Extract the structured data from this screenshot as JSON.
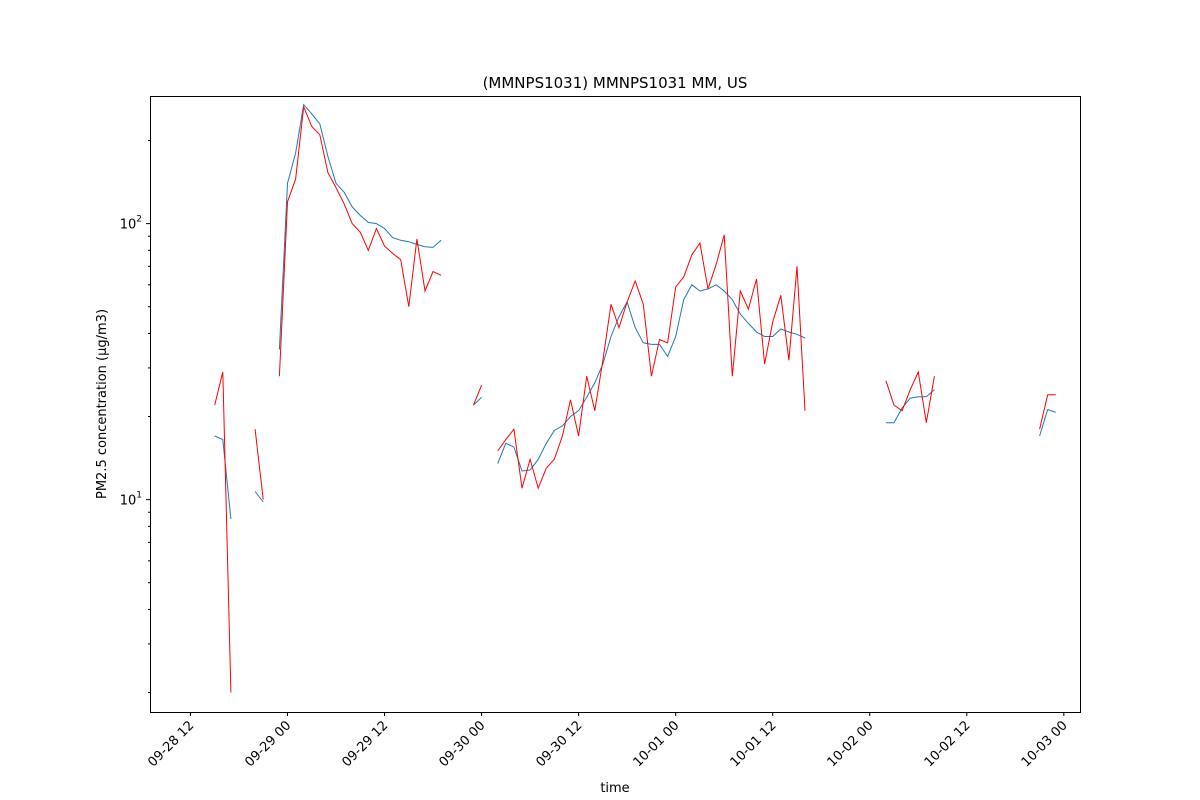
{
  "chart_data": {
    "type": "line",
    "title": "(MMNPS1031) MMNPS1031 MM, US",
    "xlabel": "time",
    "ylabel": "PM2.5 concentration (µg/m3)",
    "yscale": "log",
    "ylim": [
      1.7,
      290
    ],
    "xlim": [
      "2022-09-28T07:00",
      "2022-10-03T02:00"
    ],
    "x_ticks": [
      "09-28 12",
      "09-29 00",
      "09-29 12",
      "09-30 00",
      "09-30 12",
      "10-01 00",
      "10-01 12",
      "10-02 00",
      "10-02 12",
      "10-03 00"
    ],
    "x_tick_values": [
      "2022-09-28T12:00",
      "2022-09-29T00:00",
      "2022-09-29T12:00",
      "2022-09-30T00:00",
      "2022-09-30T12:00",
      "2022-10-01T00:00",
      "2022-10-01T12:00",
      "2022-10-02T00:00",
      "2022-10-02T12:00",
      "2022-10-03T00:00"
    ],
    "y_ticks": [
      {
        "value": 10,
        "base": "10",
        "exp": "1"
      },
      {
        "value": 100,
        "base": "10",
        "exp": "2"
      }
    ],
    "grid": false,
    "legend": "none",
    "series": [
      {
        "color": "#1f77b4",
        "segments": [
          [
            [
              "2022-09-28T15:00",
              17
            ],
            [
              "2022-09-28T16:00",
              16.5
            ],
            [
              "2022-09-28T17:00",
              8.5
            ]
          ],
          [
            [
              "2022-09-28T20:00",
              10.7
            ],
            [
              "2022-09-28T21:00",
              9.8
            ]
          ],
          [
            [
              "2022-09-28T23:00",
              35
            ],
            [
              "2022-09-29T00:00",
              140
            ],
            [
              "2022-09-29T01:00",
              180
            ],
            [
              "2022-09-29T02:00",
              270
            ],
            [
              "2022-09-29T03:00",
              250
            ],
            [
              "2022-09-29T04:00",
              230
            ],
            [
              "2022-09-29T05:00",
              175
            ],
            [
              "2022-09-29T06:00",
              140
            ],
            [
              "2022-09-29T07:00",
              130
            ],
            [
              "2022-09-29T08:00",
              115
            ],
            [
              "2022-09-29T09:00",
              107
            ],
            [
              "2022-09-29T10:00",
              101
            ],
            [
              "2022-09-29T11:00",
              100
            ],
            [
              "2022-09-29T12:00",
              96
            ],
            [
              "2022-09-29T13:00",
              89
            ],
            [
              "2022-09-29T14:00",
              87
            ],
            [
              "2022-09-29T15:00",
              86
            ],
            [
              "2022-09-29T16:00",
              84
            ],
            [
              "2022-09-29T17:00",
              82.5
            ],
            [
              "2022-09-29T18:00",
              82
            ],
            [
              "2022-09-29T19:00",
              87
            ]
          ],
          [
            [
              "2022-09-29T23:00",
              22
            ],
            [
              "2022-09-30T00:00",
              23.5
            ]
          ],
          [
            [
              "2022-09-30T02:00",
              13.5
            ],
            [
              "2022-09-30T03:00",
              16
            ],
            [
              "2022-09-30T04:00",
              15.5
            ],
            [
              "2022-09-30T05:00",
              12.7
            ],
            [
              "2022-09-30T06:00",
              12.8
            ],
            [
              "2022-09-30T07:00",
              14
            ],
            [
              "2022-09-30T08:00",
              16
            ],
            [
              "2022-09-30T09:00",
              17.8
            ],
            [
              "2022-09-30T10:00",
              18.5
            ],
            [
              "2022-09-30T11:00",
              20
            ],
            [
              "2022-09-30T12:00",
              21
            ],
            [
              "2022-09-30T13:00",
              23.5
            ],
            [
              "2022-09-30T14:00",
              26.5
            ],
            [
              "2022-09-30T15:00",
              31
            ],
            [
              "2022-09-30T16:00",
              39
            ],
            [
              "2022-09-30T17:00",
              46
            ],
            [
              "2022-09-30T18:00",
              52
            ],
            [
              "2022-09-30T19:00",
              42
            ],
            [
              "2022-09-30T20:00",
              37
            ],
            [
              "2022-09-30T21:00",
              36.5
            ],
            [
              "2022-09-30T22:00",
              36.5
            ],
            [
              "2022-09-30T23:00",
              33
            ],
            [
              "2022-10-01T00:00",
              39
            ],
            [
              "2022-10-01T01:00",
              53
            ],
            [
              "2022-10-01T02:00",
              60
            ],
            [
              "2022-10-01T03:00",
              57
            ],
            [
              "2022-10-01T04:00",
              58
            ],
            [
              "2022-10-01T05:00",
              60
            ],
            [
              "2022-10-01T06:00",
              57
            ],
            [
              "2022-10-01T07:00",
              53
            ],
            [
              "2022-10-01T08:00",
              47
            ],
            [
              "2022-10-01T09:00",
              43.5
            ],
            [
              "2022-10-01T10:00",
              40.5
            ],
            [
              "2022-10-01T11:00",
              39
            ],
            [
              "2022-10-01T12:00",
              39
            ],
            [
              "2022-10-01T13:00",
              41.5
            ],
            [
              "2022-10-01T14:00",
              40.5
            ],
            [
              "2022-10-01T15:00",
              39.7
            ],
            [
              "2022-10-01T16:00",
              38.5
            ]
          ],
          [
            [
              "2022-10-02T02:00",
              19
            ],
            [
              "2022-10-02T03:00",
              19
            ],
            [
              "2022-10-02T04:00",
              21.5
            ],
            [
              "2022-10-02T05:00",
              23.3
            ],
            [
              "2022-10-02T06:00",
              23.6
            ],
            [
              "2022-10-02T07:00",
              23.6
            ],
            [
              "2022-10-02T08:00",
              25
            ]
          ],
          [
            [
              "2022-10-02T21:00",
              17
            ],
            [
              "2022-10-02T22:00",
              21.2
            ],
            [
              "2022-10-02T23:00",
              20.7
            ]
          ]
        ]
      },
      {
        "color": "#ff0000",
        "segments": [
          [
            [
              "2022-09-28T15:00",
              22
            ],
            [
              "2022-09-28T16:00",
              29
            ],
            [
              "2022-09-28T17:00",
              2.0
            ]
          ],
          [
            [
              "2022-09-28T20:00",
              18
            ],
            [
              "2022-09-28T21:00",
              10
            ]
          ],
          [
            [
              "2022-09-28T23:00",
              28
            ],
            [
              "2022-09-29T00:00",
              120
            ],
            [
              "2022-09-29T01:00",
              145
            ],
            [
              "2022-09-29T02:00",
              265
            ],
            [
              "2022-09-29T03:00",
              225
            ],
            [
              "2022-09-29T04:00",
              210
            ],
            [
              "2022-09-29T05:00",
              153
            ],
            [
              "2022-09-29T06:00",
              135
            ],
            [
              "2022-09-29T07:00",
              118
            ],
            [
              "2022-09-29T08:00",
              100
            ],
            [
              "2022-09-29T09:00",
              93
            ],
            [
              "2022-09-29T10:00",
              80
            ],
            [
              "2022-09-29T11:00",
              96
            ],
            [
              "2022-09-29T12:00",
              83
            ],
            [
              "2022-09-29T13:00",
              78
            ],
            [
              "2022-09-29T14:00",
              74
            ],
            [
              "2022-09-29T15:00",
              50
            ],
            [
              "2022-09-29T16:00",
              88
            ],
            [
              "2022-09-29T17:00",
              57
            ],
            [
              "2022-09-29T18:00",
              67
            ],
            [
              "2022-09-29T19:00",
              65
            ]
          ],
          [
            [
              "2022-09-29T23:00",
              22
            ],
            [
              "2022-09-30T00:00",
              26
            ]
          ],
          [
            [
              "2022-09-30T02:00",
              15
            ],
            [
              "2022-09-30T03:00",
              16.5
            ],
            [
              "2022-09-30T04:00",
              18
            ],
            [
              "2022-09-30T05:00",
              11
            ],
            [
              "2022-09-30T06:00",
              14
            ],
            [
              "2022-09-30T07:00",
              11
            ],
            [
              "2022-09-30T08:00",
              13
            ],
            [
              "2022-09-30T09:00",
              14
            ],
            [
              "2022-09-30T10:00",
              17
            ],
            [
              "2022-09-30T11:00",
              23
            ],
            [
              "2022-09-30T12:00",
              17
            ],
            [
              "2022-09-30T13:00",
              28
            ],
            [
              "2022-09-30T14:00",
              21
            ],
            [
              "2022-09-30T15:00",
              32
            ],
            [
              "2022-09-30T16:00",
              51
            ],
            [
              "2022-09-30T17:00",
              42
            ],
            [
              "2022-09-30T18:00",
              52
            ],
            [
              "2022-09-30T19:00",
              62
            ],
            [
              "2022-09-30T20:00",
              51
            ],
            [
              "2022-09-30T21:00",
              28
            ],
            [
              "2022-09-30T22:00",
              38
            ],
            [
              "2022-09-30T23:00",
              37
            ],
            [
              "2022-10-01T00:00",
              59
            ],
            [
              "2022-10-01T01:00",
              64
            ],
            [
              "2022-10-01T02:00",
              77
            ],
            [
              "2022-10-01T03:00",
              85
            ],
            [
              "2022-10-01T04:00",
              58
            ],
            [
              "2022-10-01T05:00",
              71
            ],
            [
              "2022-10-01T06:00",
              91
            ],
            [
              "2022-10-01T07:00",
              28
            ],
            [
              "2022-10-01T08:00",
              57
            ],
            [
              "2022-10-01T09:00",
              49
            ],
            [
              "2022-10-01T10:00",
              63
            ],
            [
              "2022-10-01T11:00",
              31
            ],
            [
              "2022-10-01T12:00",
              44
            ],
            [
              "2022-10-01T13:00",
              55
            ],
            [
              "2022-10-01T14:00",
              32
            ],
            [
              "2022-10-01T15:00",
              70
            ],
            [
              "2022-10-01T16:00",
              21
            ]
          ],
          [
            [
              "2022-10-02T02:00",
              27
            ],
            [
              "2022-10-02T03:00",
              22
            ],
            [
              "2022-10-02T04:00",
              21
            ],
            [
              "2022-10-02T05:00",
              25
            ],
            [
              "2022-10-02T06:00",
              29
            ],
            [
              "2022-10-02T07:00",
              19
            ],
            [
              "2022-10-02T08:00",
              28
            ]
          ],
          [
            [
              "2022-10-02T21:00",
              18
            ],
            [
              "2022-10-02T22:00",
              24
            ],
            [
              "2022-10-02T23:00",
              24
            ]
          ]
        ]
      }
    ]
  }
}
